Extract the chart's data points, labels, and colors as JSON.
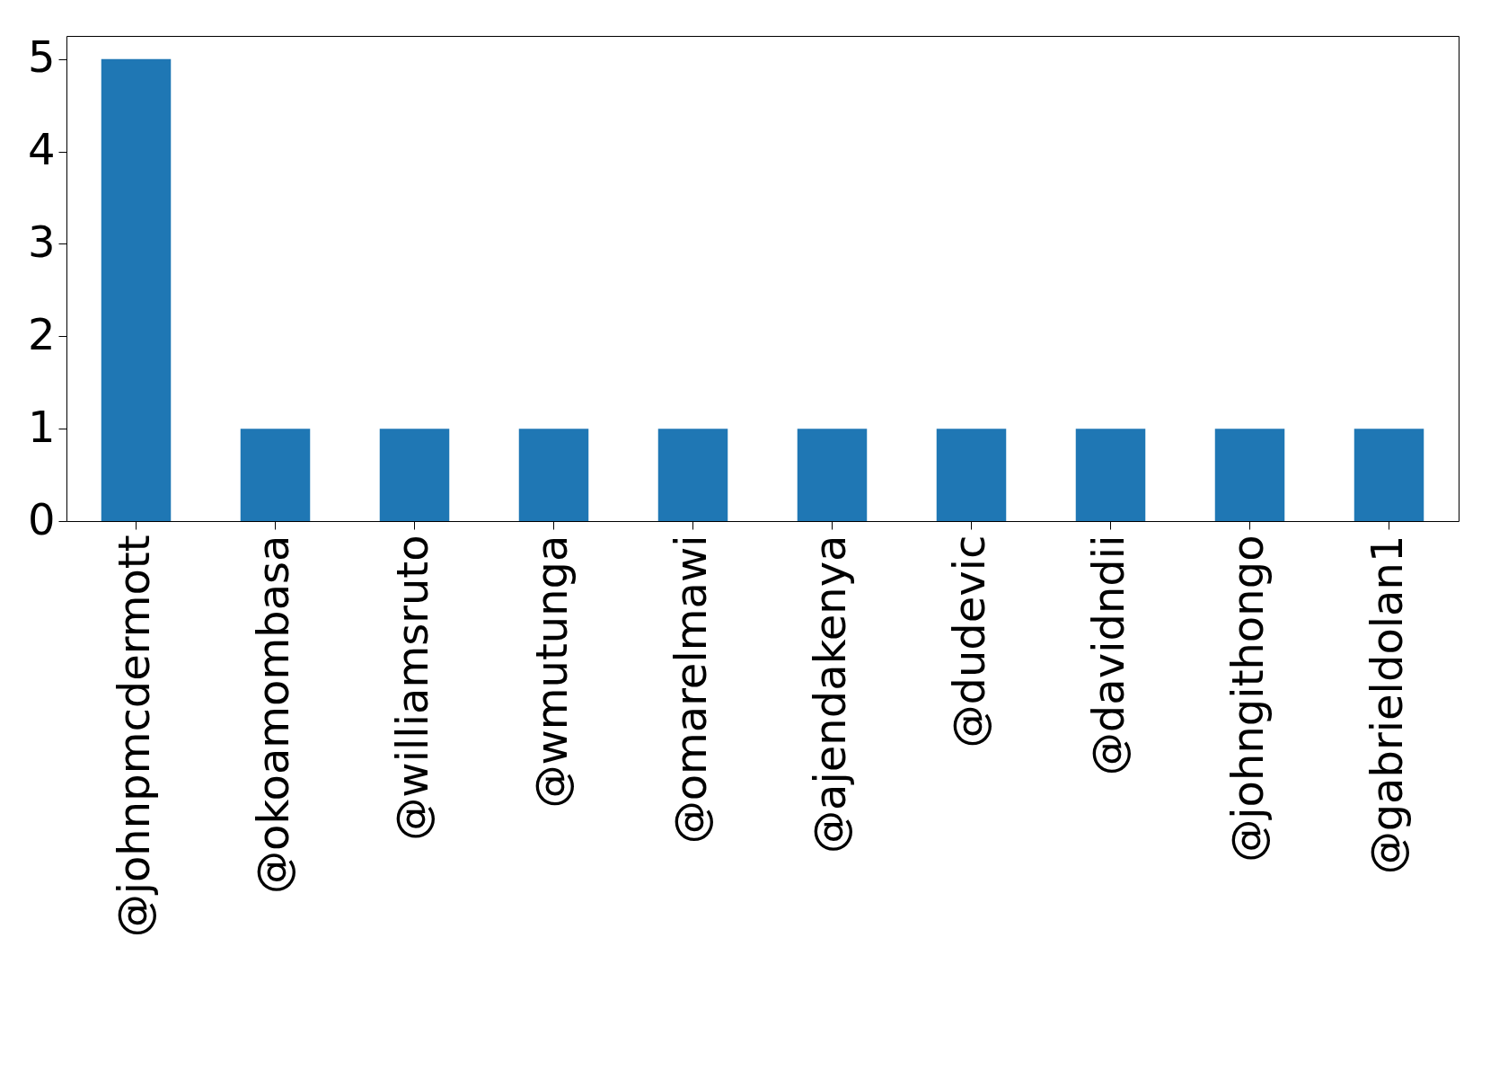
{
  "chart_data": {
    "type": "bar",
    "categories": [
      "@johnpmcdermott",
      "@okoamombasa",
      "@williamsruto",
      "@wmutunga",
      "@omarelmawi",
      "@ajendakenya",
      "@dudevic",
      "@davidndii",
      "@johngithongo",
      "@gabrieldolan1"
    ],
    "values": [
      5,
      1,
      1,
      1,
      1,
      1,
      1,
      1,
      1,
      1
    ],
    "color": "#1f77b4",
    "ylim": [
      0,
      5.25
    ],
    "yticks": [
      0,
      1,
      2,
      3,
      4,
      5
    ],
    "grid": false
  }
}
